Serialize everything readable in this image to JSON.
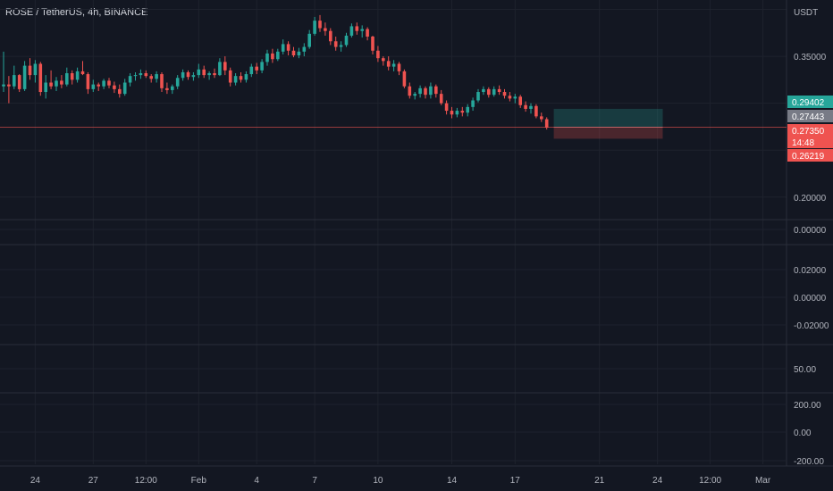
{
  "header": {
    "title": "ROSE / TetherUS, 4h, BINANCE",
    "currency": "USDT"
  },
  "colors": {
    "up": "#26a69a",
    "down": "#ef5350",
    "bg": "#131722",
    "grid": "#1e222d",
    "divider": "#2a2e39"
  },
  "chart_data": {
    "type": "candlestick",
    "title": "ROSE / TetherUS, 4h, BINANCE",
    "ylabel": "USDT",
    "ylim": [
      0.176,
      0.41
    ],
    "y_ticks": [
      "0.35000",
      "0.20000"
    ],
    "x_ticks": [
      "24",
      "27",
      "12:00",
      "Feb",
      "4",
      "7",
      "10",
      "14",
      "17",
      "21",
      "24",
      "12:00",
      "Mar"
    ],
    "x_tick_index": [
      6,
      17,
      27,
      37,
      48,
      59,
      71,
      85,
      97,
      113,
      124,
      134,
      144
    ],
    "candles": [
      [
        0.318,
        0.355,
        0.312,
        0.32
      ],
      [
        0.32,
        0.329,
        0.3,
        0.318
      ],
      [
        0.318,
        0.34,
        0.315,
        0.33
      ],
      [
        0.33,
        0.331,
        0.312,
        0.315
      ],
      [
        0.315,
        0.345,
        0.313,
        0.34
      ],
      [
        0.34,
        0.348,
        0.325,
        0.33
      ],
      [
        0.33,
        0.346,
        0.322,
        0.342
      ],
      [
        0.342,
        0.344,
        0.308,
        0.312
      ],
      [
        0.312,
        0.33,
        0.305,
        0.322
      ],
      [
        0.322,
        0.335,
        0.315,
        0.318
      ],
      [
        0.318,
        0.328,
        0.313,
        0.324
      ],
      [
        0.324,
        0.33,
        0.316,
        0.32
      ],
      [
        0.32,
        0.338,
        0.318,
        0.332
      ],
      [
        0.332,
        0.335,
        0.32,
        0.325
      ],
      [
        0.325,
        0.338,
        0.322,
        0.334
      ],
      [
        0.334,
        0.345,
        0.33,
        0.331
      ],
      [
        0.331,
        0.333,
        0.31,
        0.315
      ],
      [
        0.315,
        0.325,
        0.312,
        0.32
      ],
      [
        0.32,
        0.322,
        0.313,
        0.318
      ],
      [
        0.318,
        0.326,
        0.315,
        0.324
      ],
      [
        0.324,
        0.327,
        0.316,
        0.319
      ],
      [
        0.319,
        0.323,
        0.311,
        0.315
      ],
      [
        0.315,
        0.32,
        0.306,
        0.31
      ],
      [
        0.31,
        0.326,
        0.308,
        0.322
      ],
      [
        0.322,
        0.332,
        0.318,
        0.329
      ],
      [
        0.329,
        0.333,
        0.324,
        0.33
      ],
      [
        0.33,
        0.336,
        0.326,
        0.332
      ],
      [
        0.332,
        0.335,
        0.327,
        0.329
      ],
      [
        0.329,
        0.331,
        0.322,
        0.326
      ],
      [
        0.326,
        0.334,
        0.322,
        0.331
      ],
      [
        0.331,
        0.333,
        0.312,
        0.316
      ],
      [
        0.316,
        0.322,
        0.31,
        0.314
      ],
      [
        0.314,
        0.32,
        0.31,
        0.318
      ],
      [
        0.318,
        0.33,
        0.315,
        0.327
      ],
      [
        0.327,
        0.336,
        0.324,
        0.333
      ],
      [
        0.333,
        0.335,
        0.325,
        0.328
      ],
      [
        0.328,
        0.333,
        0.324,
        0.33
      ],
      [
        0.33,
        0.342,
        0.327,
        0.336
      ],
      [
        0.336,
        0.34,
        0.327,
        0.33
      ],
      [
        0.33,
        0.334,
        0.325,
        0.332
      ],
      [
        0.332,
        0.337,
        0.327,
        0.33
      ],
      [
        0.33,
        0.348,
        0.329,
        0.344
      ],
      [
        0.344,
        0.35,
        0.33,
        0.335
      ],
      [
        0.335,
        0.338,
        0.318,
        0.322
      ],
      [
        0.322,
        0.332,
        0.319,
        0.329
      ],
      [
        0.329,
        0.333,
        0.322,
        0.325
      ],
      [
        0.325,
        0.334,
        0.322,
        0.331
      ],
      [
        0.331,
        0.342,
        0.328,
        0.339
      ],
      [
        0.339,
        0.343,
        0.331,
        0.335
      ],
      [
        0.335,
        0.347,
        0.332,
        0.344
      ],
      [
        0.344,
        0.357,
        0.34,
        0.353
      ],
      [
        0.353,
        0.358,
        0.343,
        0.347
      ],
      [
        0.347,
        0.358,
        0.345,
        0.355
      ],
      [
        0.355,
        0.368,
        0.352,
        0.363
      ],
      [
        0.363,
        0.366,
        0.351,
        0.356
      ],
      [
        0.356,
        0.36,
        0.349,
        0.351
      ],
      [
        0.351,
        0.359,
        0.348,
        0.355
      ],
      [
        0.355,
        0.364,
        0.35,
        0.36
      ],
      [
        0.36,
        0.378,
        0.358,
        0.374
      ],
      [
        0.374,
        0.392,
        0.372,
        0.388
      ],
      [
        0.388,
        0.394,
        0.376,
        0.38
      ],
      [
        0.38,
        0.386,
        0.372,
        0.377
      ],
      [
        0.377,
        0.38,
        0.362,
        0.366
      ],
      [
        0.366,
        0.371,
        0.356,
        0.36
      ],
      [
        0.36,
        0.366,
        0.355,
        0.362
      ],
      [
        0.362,
        0.375,
        0.36,
        0.372
      ],
      [
        0.372,
        0.385,
        0.37,
        0.382
      ],
      [
        0.382,
        0.386,
        0.373,
        0.377
      ],
      [
        0.377,
        0.383,
        0.37,
        0.379
      ],
      [
        0.379,
        0.381,
        0.367,
        0.371
      ],
      [
        0.371,
        0.372,
        0.352,
        0.356
      ],
      [
        0.356,
        0.361,
        0.344,
        0.348
      ],
      [
        0.348,
        0.35,
        0.34,
        0.345
      ],
      [
        0.345,
        0.35,
        0.335,
        0.339
      ],
      [
        0.339,
        0.346,
        0.334,
        0.342
      ],
      [
        0.342,
        0.344,
        0.33,
        0.334
      ],
      [
        0.334,
        0.336,
        0.316,
        0.318
      ],
      [
        0.318,
        0.322,
        0.305,
        0.308
      ],
      [
        0.308,
        0.312,
        0.304,
        0.31
      ],
      [
        0.31,
        0.319,
        0.306,
        0.316
      ],
      [
        0.316,
        0.318,
        0.305,
        0.309
      ],
      [
        0.309,
        0.322,
        0.305,
        0.318
      ],
      [
        0.318,
        0.32,
        0.306,
        0.31
      ],
      [
        0.31,
        0.314,
        0.298,
        0.3
      ],
      [
        0.3,
        0.303,
        0.288,
        0.292
      ],
      [
        0.292,
        0.296,
        0.284,
        0.288
      ],
      [
        0.288,
        0.295,
        0.285,
        0.292
      ],
      [
        0.292,
        0.296,
        0.286,
        0.29
      ],
      [
        0.29,
        0.299,
        0.286,
        0.296
      ],
      [
        0.296,
        0.306,
        0.292,
        0.303
      ],
      [
        0.303,
        0.315,
        0.301,
        0.312
      ],
      [
        0.312,
        0.318,
        0.309,
        0.315
      ],
      [
        0.315,
        0.317,
        0.306,
        0.309
      ],
      [
        0.309,
        0.318,
        0.307,
        0.315
      ],
      [
        0.315,
        0.319,
        0.309,
        0.312
      ],
      [
        0.312,
        0.315,
        0.305,
        0.308
      ],
      [
        0.308,
        0.312,
        0.302,
        0.305
      ],
      [
        0.305,
        0.31,
        0.3,
        0.307
      ],
      [
        0.307,
        0.309,
        0.295,
        0.298
      ],
      [
        0.298,
        0.302,
        0.291,
        0.294
      ],
      [
        0.294,
        0.3,
        0.289,
        0.297
      ],
      [
        0.297,
        0.299,
        0.284,
        0.286
      ],
      [
        0.286,
        0.29,
        0.28,
        0.283
      ],
      [
        0.283,
        0.285,
        0.272,
        0.274
      ]
    ],
    "current_price_line": 0.2744,
    "position": {
      "target": 0.29402,
      "entry": 0.27443,
      "stop": 0.26219,
      "start_index": 104,
      "end_index": 125
    },
    "price_labels": [
      {
        "text": "0.29402",
        "value": 0.29402,
        "role": "target"
      },
      {
        "text": "0.27443",
        "value": 0.27443,
        "role": "entry"
      },
      {
        "text": "0.27350",
        "value": 0.2735,
        "role": "last"
      },
      {
        "text": "14:48",
        "value": 0.2695,
        "role": "countdown"
      },
      {
        "text": "0.26219",
        "value": 0.26219,
        "role": "stop"
      }
    ],
    "panes": [
      {
        "name": "pane-1",
        "ticks": [
          "0.00000"
        ]
      },
      {
        "name": "pane-2",
        "ticks": [
          "0.02000",
          "0.00000",
          "-0.02000"
        ]
      },
      {
        "name": "pane-3",
        "ticks": [
          "50.00"
        ]
      },
      {
        "name": "pane-4",
        "ticks": [
          "200.00",
          "0.00",
          "-200.00"
        ]
      }
    ]
  }
}
